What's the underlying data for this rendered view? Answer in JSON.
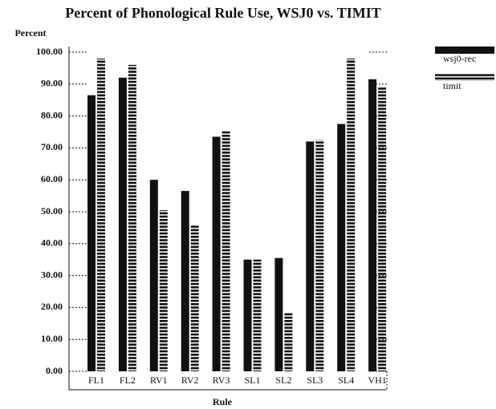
{
  "chart_data": {
    "type": "bar",
    "title": "Percent of Phonological Rule Use, WSJ0 vs. TIMIT",
    "y_label": "Percent",
    "x_label": "Rule",
    "categories": [
      "FL1",
      "FL2",
      "RV1",
      "RV2",
      "RV3",
      "SL1",
      "SL2",
      "SL3",
      "SL4",
      "VH1"
    ],
    "series": [
      {
        "name": "wsj0-rec",
        "color": "#111111",
        "hatch": false,
        "values": [
          86.5,
          92,
          60,
          56.5,
          73.5,
          35,
          35.5,
          72,
          77.5,
          91.5
        ]
      },
      {
        "name": "timit",
        "color": "#111111",
        "hatch": true,
        "values": [
          98,
          96,
          50.5,
          46,
          75.5,
          35,
          18.5,
          72.5,
          98,
          89
        ]
      }
    ],
    "ylim": [
      0,
      100
    ],
    "yticks": [
      {
        "value": 0,
        "label": "0.00"
      },
      {
        "value": 10,
        "label": "10.00"
      },
      {
        "value": 20,
        "label": "20.00"
      },
      {
        "value": 30,
        "label": "30.00"
      },
      {
        "value": 40,
        "label": "40.00"
      },
      {
        "value": 50,
        "label": "50.00"
      },
      {
        "value": 60,
        "label": "60.00"
      },
      {
        "value": 70,
        "label": "70.00"
      },
      {
        "value": 80,
        "label": "80.00"
      },
      {
        "value": 90,
        "label": "90.00"
      },
      {
        "value": 100,
        "label": "100.00"
      }
    ],
    "legend": "right"
  }
}
